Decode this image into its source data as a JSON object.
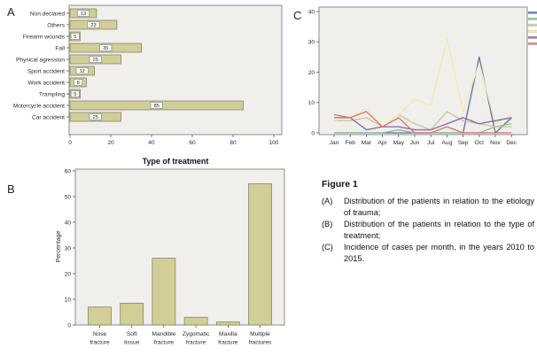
{
  "panels": {
    "a": {
      "letter": "A"
    },
    "b": {
      "letter": "B"
    },
    "c": {
      "letter": "C"
    }
  },
  "chart_data": [
    {
      "id": "etiology-of-trauma",
      "type": "bar",
      "orientation": "horizontal",
      "categories": [
        "Non declared",
        "Others",
        "Firearm wounds",
        "Fall",
        "Physical agression",
        "Sport accident",
        "Work accident",
        "Trampling",
        "Motorcycle accident",
        "Car accident"
      ],
      "values": [
        13,
        23,
        5,
        35,
        25,
        12,
        8,
        5,
        85,
        25
      ],
      "xlim": [
        0,
        100
      ],
      "xticks": [
        0,
        20,
        40,
        60,
        80,
        100
      ],
      "bar_color": "#d3cd96",
      "bar_border": "#85856e",
      "plot_bg": "#f0efec",
      "frame_color": "#8e8e8c",
      "value_labels_boxed": true
    },
    {
      "id": "type-of-treatment",
      "type": "bar",
      "orientation": "vertical",
      "title": "Type of treatment",
      "categories": [
        "Nose\nfracture",
        "Soft\ntissue",
        "Mandible\nfracture",
        "Zygomatic\nfracture",
        "Maxilla\nfracture",
        "Multiple\nfractures"
      ],
      "values": [
        7,
        8.5,
        26,
        3,
        1.2,
        55
      ],
      "ylabel": "Percentage",
      "ylim": [
        0,
        60
      ],
      "yticks": [
        0,
        10,
        20,
        30,
        40,
        50,
        60
      ],
      "bar_color": "#d3cd96",
      "bar_border": "#85856e",
      "plot_bg": "#f0efec",
      "frame_color": "#8e8e8c"
    },
    {
      "id": "incidence-per-month",
      "type": "line",
      "x": [
        "Jan",
        "Feb",
        "Mar",
        "Apr",
        "May",
        "Jun",
        "Jul",
        "Aug",
        "Sep",
        "Oct",
        "Nov",
        "Dec"
      ],
      "ylim": [
        0,
        40
      ],
      "yticks": [
        0,
        10,
        20,
        30,
        40
      ],
      "plot_bg": "#f0efec",
      "frame_color": "#8e8e8c",
      "legend_position": "right-cropped",
      "series": [
        {
          "name": "series-blue",
          "color": "#5570b4",
          "values": [
            0,
            0,
            0,
            0,
            0,
            0,
            0,
            0,
            0,
            25,
            0,
            5
          ]
        },
        {
          "name": "series-green",
          "color": "#86c493",
          "values": [
            0,
            0,
            0,
            0,
            1,
            0,
            0,
            0,
            0,
            0,
            2,
            3
          ]
        },
        {
          "name": "series-tan",
          "color": "#ccc49a",
          "values": [
            4,
            4,
            5,
            2,
            6,
            3,
            1,
            7,
            4,
            3,
            2,
            2
          ]
        },
        {
          "name": "series-yellow",
          "color": "#f2eca2",
          "values": [
            4,
            5,
            8,
            2,
            6,
            11,
            9,
            31,
            7,
            23,
            3,
            6
          ]
        },
        {
          "name": "series-purple",
          "color": "#8668ab",
          "values": [
            5,
            5,
            1,
            2,
            2,
            1,
            1,
            3,
            5,
            3,
            4,
            5
          ]
        },
        {
          "name": "series-red",
          "color": "#e0716c",
          "values": [
            6,
            5,
            7,
            2,
            5,
            0,
            0,
            2,
            0,
            0,
            0,
            0
          ]
        }
      ]
    }
  ],
  "caption": {
    "title": "Figure 1",
    "items": [
      {
        "tag": "(A)",
        "text": "Distribution of the patients in relation to the etiology of trauma;"
      },
      {
        "tag": "(B)",
        "text": "Distribution of the patients in relation to the type of treatment;"
      },
      {
        "tag": "(C)",
        "text": "Incidence of cases per month, in the years 2010 to 2015."
      }
    ]
  }
}
